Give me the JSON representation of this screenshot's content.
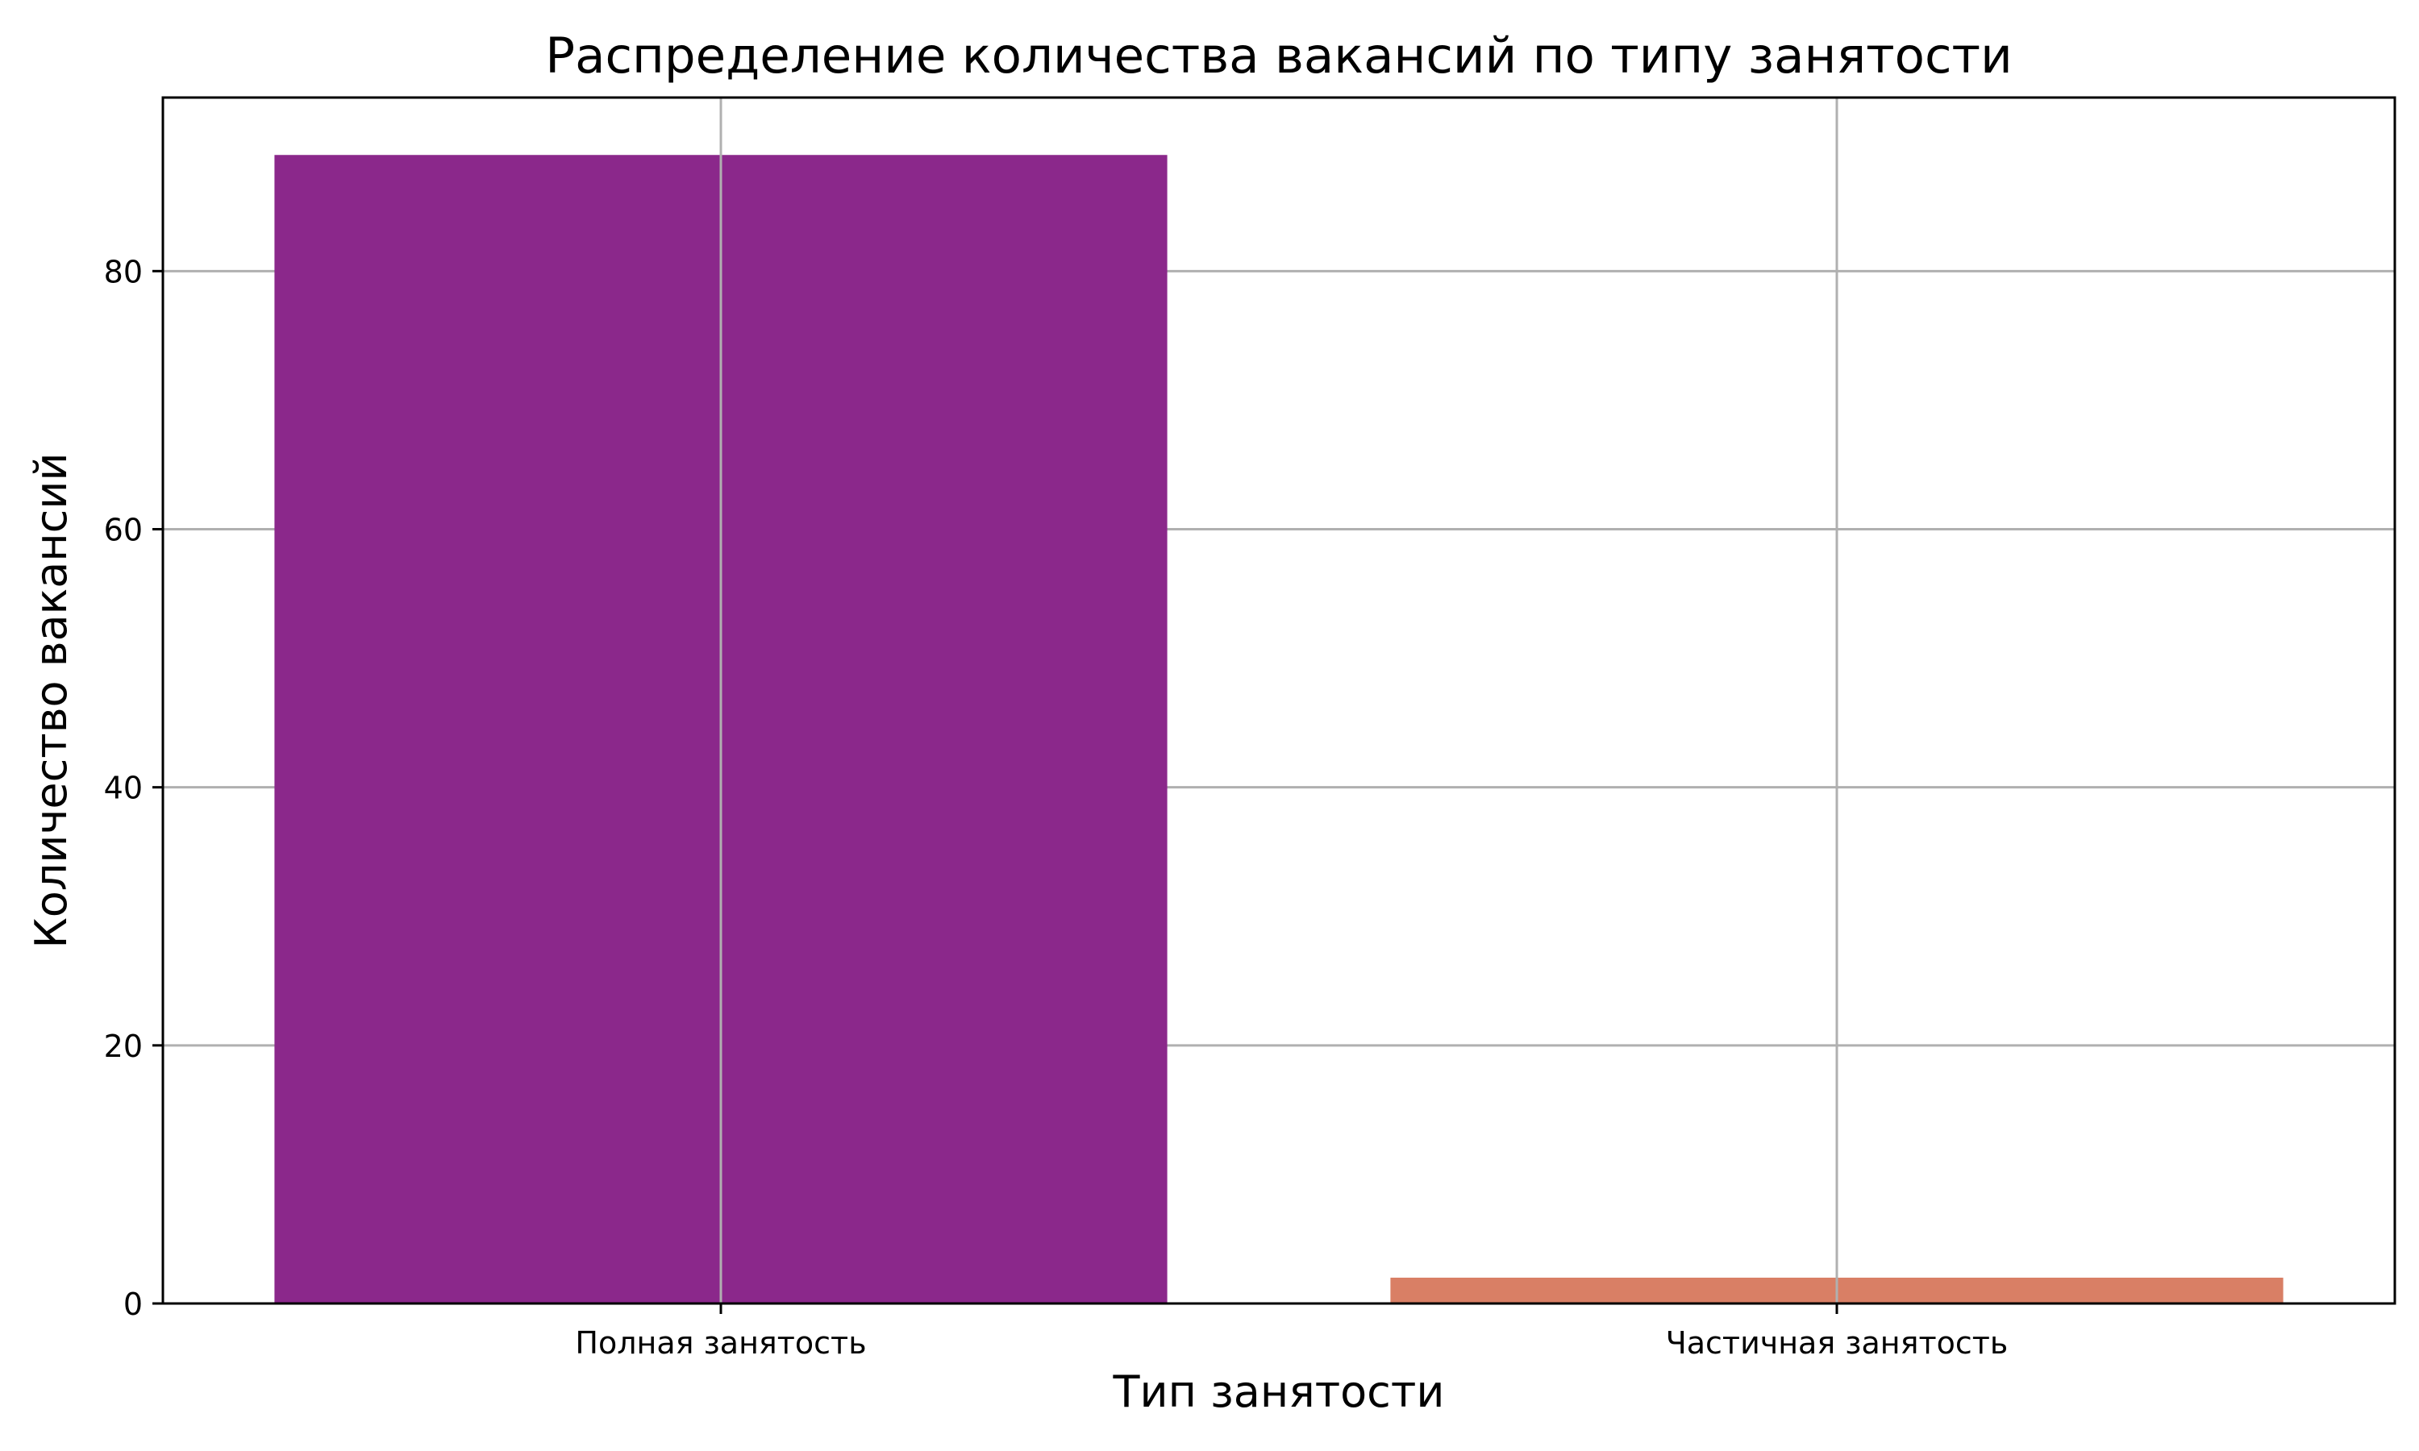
{
  "chart_data": {
    "type": "bar",
    "title": "Распределение количества вакансий по типу занятости",
    "xlabel": "Тип занятости",
    "ylabel": "Количество вакансий",
    "categories": [
      "Полная занятость",
      "Частичная занятость"
    ],
    "values": [
      89,
      2
    ],
    "colors": [
      "#8b288b",
      "#d97f65"
    ],
    "ylim": [
      0,
      93.45
    ],
    "yticks": [
      0,
      20,
      40,
      60,
      80
    ],
    "grid": true,
    "legend": "none"
  }
}
